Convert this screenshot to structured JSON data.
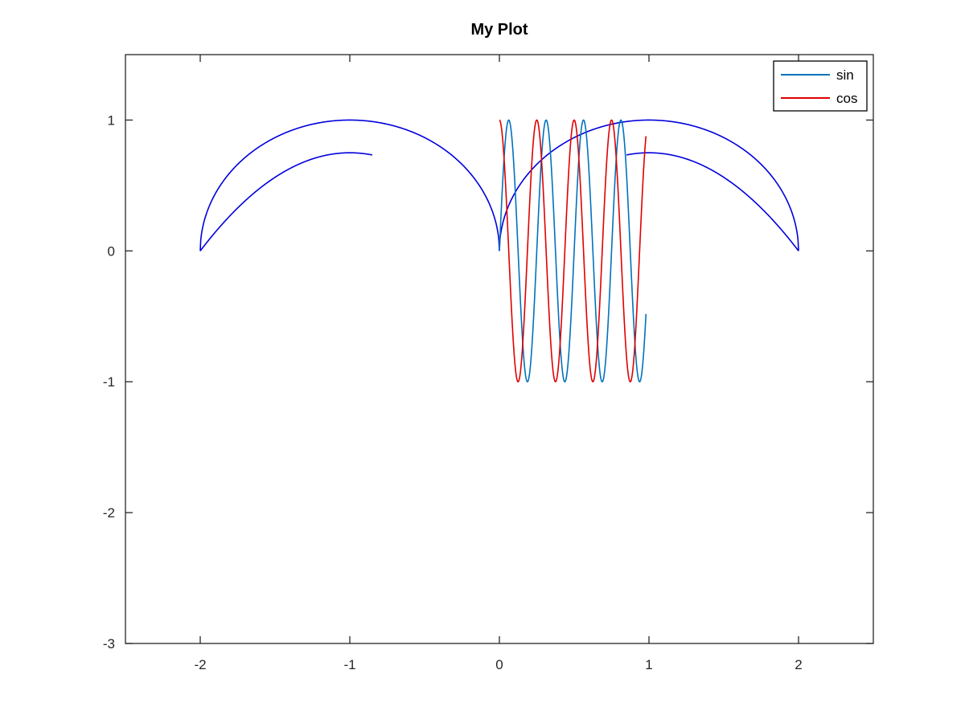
{
  "chart_data": {
    "type": "line",
    "title": "My Plot",
    "xlabel": "",
    "ylabel": "",
    "xlim": [
      -2.5,
      2.5
    ],
    "ylim": [
      -3,
      1.5
    ],
    "grid": false,
    "legend_placement": "top-right",
    "x_ticks": [
      "-2",
      "-1",
      "0",
      "1",
      "2"
    ],
    "x_tick_values": [
      -2,
      -1,
      0,
      1,
      2
    ],
    "y_ticks": [
      "1",
      "0",
      "-1",
      "-2",
      "-3"
    ],
    "y_tick_values": [
      1,
      0,
      -1,
      -2,
      -3
    ],
    "series": [
      {
        "name": "sin",
        "color": "#0072bd",
        "function": "sin(2*pi*4*x)",
        "x_range": [
          0,
          0.98
        ],
        "in_legend": true
      },
      {
        "name": "cos",
        "color": "#e00000",
        "function": "cos(2*pi*4*x)",
        "x_range": [
          0,
          0.98
        ],
        "in_legend": true
      },
      {
        "color": "#0000dd",
        "function": "semicircle centered at -1, radius 1",
        "x_range": [
          -2,
          0
        ],
        "in_legend": false
      },
      {
        "color": "#0000dd",
        "function": "semicircle centered at 1, radius 1",
        "x_range": [
          0,
          2
        ],
        "in_legend": false
      },
      {
        "color": "#0000dd",
        "function": "parabola through (-2,0) and (0,0)",
        "x_range": [
          -2,
          -0.85
        ],
        "in_legend": false
      },
      {
        "color": "#0000dd",
        "function": "parabola through (0,0) and (2,0)",
        "x_range": [
          0.85,
          2
        ],
        "in_legend": false
      }
    ]
  },
  "colors": {
    "axes": "#262626",
    "legend_border": "#000000",
    "background": "#ffffff"
  }
}
